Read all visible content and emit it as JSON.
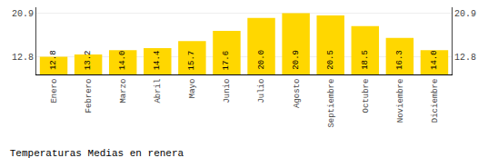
{
  "chart_data": {
    "type": "bar",
    "title": "Temperaturas Medias en renera",
    "categories": [
      "Enero",
      "Febrero",
      "Marzo",
      "Abril",
      "Mayo",
      "Junio",
      "Julio",
      "Agosto",
      "Septiembre",
      "Octubre",
      "Noviembre",
      "Diciembre"
    ],
    "values": [
      12.8,
      13.2,
      14.0,
      14.4,
      15.7,
      17.6,
      20.0,
      20.9,
      20.5,
      18.5,
      16.3,
      14.0
    ],
    "value_labels": [
      "12.8",
      "13.2",
      "14.0",
      "14.4",
      "15.7",
      "17.6",
      "20.0",
      "20.9",
      "20.5",
      "18.5",
      "16.3",
      "14.0"
    ],
    "data_labels": true,
    "color": "#FFD700",
    "ylim": [
      9.5,
      22.0
    ],
    "yticks": [
      12.8,
      20.9
    ],
    "y2lim": [
      9.5,
      22.0
    ],
    "y2ticks": [
      12.8,
      20.9
    ],
    "grid": true
  }
}
